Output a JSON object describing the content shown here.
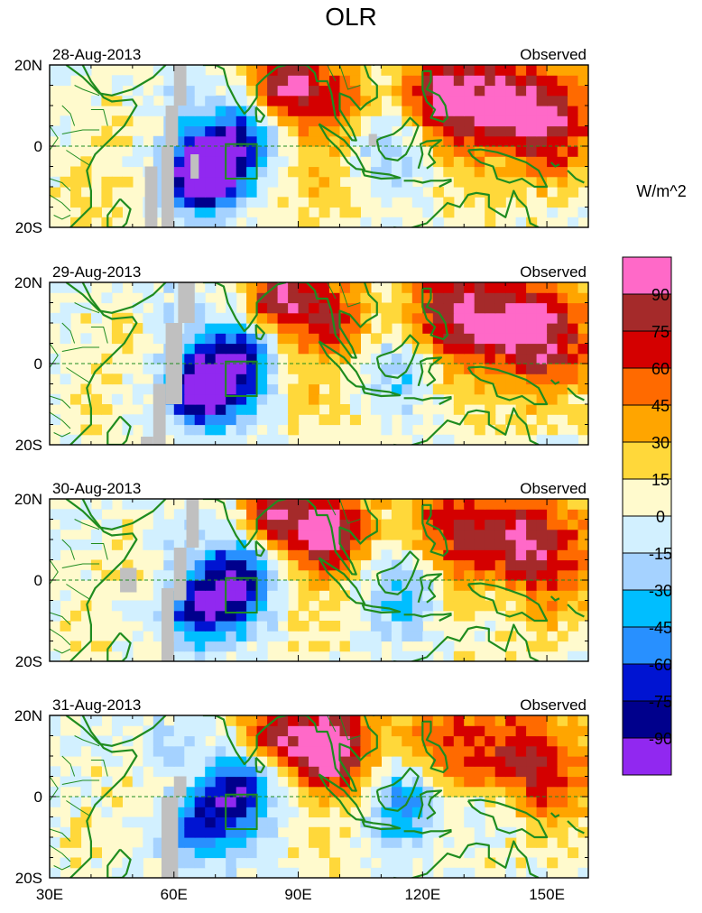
{
  "title": "OLR",
  "units": "W/m^2",
  "panels": [
    {
      "date": "28-Aug-2013",
      "label": "Observed",
      "seed": 1
    },
    {
      "date": "29-Aug-2013",
      "label": "Observed",
      "seed": 2
    },
    {
      "date": "30-Aug-2013",
      "label": "Observed",
      "seed": 3
    },
    {
      "date": "31-Aug-2013",
      "label": "Observed",
      "seed": 4
    }
  ],
  "y_ticks": [
    "20N",
    "0",
    "20S"
  ],
  "x_ticks": [
    "30E",
    "60E",
    "90E",
    "120E",
    "150E"
  ],
  "x_range": [
    30,
    160
  ],
  "y_range": [
    -20,
    20
  ],
  "colorbar": {
    "labels": [
      "90",
      "75",
      "60",
      "45",
      "30",
      "15",
      "0",
      "-15",
      "-30",
      "-45",
      "-60",
      "-75",
      "-90"
    ],
    "colors": [
      "#ff69c8",
      "#a52a2a",
      "#d40000",
      "#ff6a00",
      "#ffa500",
      "#ffd83a",
      "#fffacd",
      "#d2f0ff",
      "#a5d2ff",
      "#00beff",
      "#2890ff",
      "#0014d2",
      "#00008c",
      "#9128f0"
    ]
  },
  "missing_color": "#c0c0c0",
  "land_color": "#1f8c1f"
}
